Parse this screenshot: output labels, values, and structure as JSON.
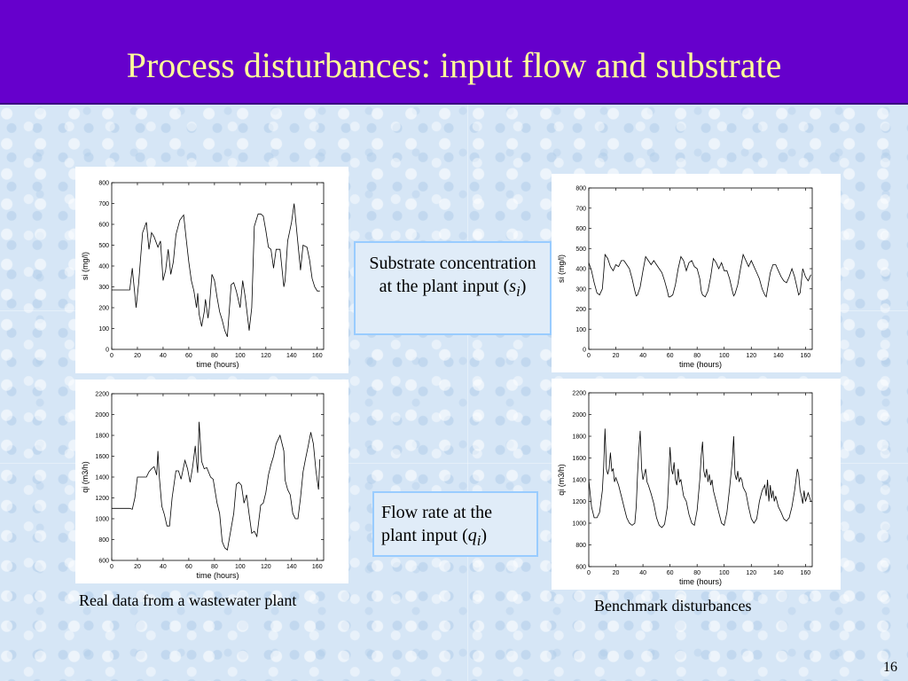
{
  "slide": {
    "title": "Process disturbances: input flow and substrate",
    "caption_left": "Real data from a wastewater plant",
    "caption_right": "Benchmark disturbances",
    "callout_top": {
      "text": "Substrate concentration at the plant input (",
      "symbol": "s",
      "subscript": "i",
      "close": ")"
    },
    "callout_bottom": {
      "text": "Flow rate at the plant input (",
      "symbol": "q",
      "subscript": "i",
      "close": ")"
    },
    "slide_number": "16",
    "colors": {
      "title_bar": "#6600cc",
      "title_text": "#ffff99",
      "background": "#d6e6f6",
      "callout_border": "#99ccff"
    }
  },
  "chart_data": [
    {
      "id": "real-si",
      "type": "line",
      "xlabel": "time (hours)",
      "ylabel": "si (mg/l)",
      "xlim": [
        0,
        165
      ],
      "ylim": [
        0,
        800
      ],
      "xticks": [
        0,
        20,
        40,
        60,
        80,
        100,
        120,
        140,
        160
      ],
      "yticks": [
        0,
        100,
        200,
        300,
        400,
        500,
        600,
        700,
        800
      ],
      "x": [
        0,
        4,
        8,
        12,
        14,
        16,
        19,
        21,
        24,
        27,
        29,
        31,
        33,
        36,
        38,
        40,
        42,
        44,
        46,
        48,
        50,
        53,
        56,
        58,
        60,
        62,
        64,
        66,
        67,
        68,
        70,
        72,
        73,
        75,
        76,
        78,
        80,
        82,
        84,
        86,
        88,
        90,
        93,
        95,
        97,
        100,
        102,
        104,
        107,
        109,
        111,
        114,
        116,
        118,
        120,
        122,
        124,
        126,
        128,
        131,
        134,
        135,
        137,
        140,
        142,
        144,
        147,
        149,
        152,
        154,
        156,
        158,
        160,
        162
      ],
      "y": [
        285,
        285,
        285,
        285,
        285,
        390,
        200,
        320,
        560,
        610,
        480,
        560,
        540,
        490,
        520,
        330,
        380,
        480,
        360,
        420,
        550,
        620,
        645,
        530,
        420,
        330,
        280,
        200,
        270,
        170,
        110,
        180,
        240,
        150,
        200,
        360,
        330,
        250,
        180,
        140,
        90,
        60,
        310,
        320,
        280,
        200,
        330,
        250,
        90,
        200,
        590,
        650,
        650,
        640,
        570,
        490,
        480,
        390,
        480,
        480,
        300,
        330,
        520,
        610,
        700,
        570,
        380,
        500,
        490,
        430,
        340,
        300,
        280,
        280
      ]
    },
    {
      "id": "real-qi",
      "type": "line",
      "xlabel": "time (hours)",
      "ylabel": "qi (m3/h)",
      "xlim": [
        0,
        165
      ],
      "ylim": [
        600,
        2200
      ],
      "xticks": [
        0,
        20,
        40,
        60,
        80,
        100,
        120,
        140,
        160
      ],
      "yticks": [
        600,
        800,
        1000,
        1200,
        1400,
        1600,
        1800,
        2000,
        2200
      ],
      "x": [
        0,
        4,
        8,
        12,
        14,
        16,
        18,
        20,
        24,
        27,
        29,
        31,
        33,
        35,
        36,
        37,
        39,
        41,
        43,
        45,
        47,
        50,
        52,
        54,
        56,
        57,
        59,
        61,
        63,
        65,
        66,
        67,
        68,
        70,
        72,
        74,
        77,
        79,
        80,
        82,
        84,
        86,
        88,
        90,
        93,
        95,
        97,
        99,
        101,
        103,
        105,
        107,
        109,
        111,
        113,
        116,
        118,
        120,
        122,
        124,
        126,
        128,
        131,
        134,
        135,
        137,
        139,
        141,
        143,
        145,
        147,
        149,
        151,
        153,
        155,
        157,
        159,
        161,
        162
      ],
      "y": [
        1100,
        1100,
        1100,
        1100,
        1100,
        1090,
        1200,
        1400,
        1400,
        1400,
        1450,
        1480,
        1500,
        1420,
        1650,
        1410,
        1120,
        1040,
        930,
        930,
        1200,
        1460,
        1460,
        1380,
        1500,
        1560,
        1480,
        1350,
        1500,
        1700,
        1550,
        1440,
        1930,
        1550,
        1480,
        1490,
        1400,
        1380,
        1300,
        1150,
        1050,
        780,
        720,
        700,
        910,
        1050,
        1330,
        1350,
        1320,
        1150,
        1230,
        1040,
        860,
        880,
        830,
        1130,
        1150,
        1250,
        1420,
        1520,
        1600,
        1720,
        1800,
        1650,
        1370,
        1280,
        1230,
        1050,
        1000,
        1000,
        1200,
        1450,
        1580,
        1700,
        1830,
        1720,
        1460,
        1280,
        1570
      ]
    },
    {
      "id": "bench-si",
      "type": "line",
      "xlabel": "time (hours)",
      "ylabel": "si (mg/l)",
      "xlim": [
        0,
        165
      ],
      "ylim": [
        0,
        800
      ],
      "xticks": [
        0,
        20,
        40,
        60,
        80,
        100,
        120,
        140,
        160
      ],
      "yticks": [
        0,
        100,
        200,
        300,
        400,
        500,
        600,
        700,
        800
      ],
      "x": [
        0,
        2,
        4,
        6,
        8,
        10,
        11,
        12,
        14,
        16,
        18,
        20,
        22,
        24,
        26,
        28,
        30,
        32,
        34,
        35,
        36,
        38,
        40,
        42,
        44,
        46,
        48,
        50,
        52,
        54,
        56,
        58,
        59,
        60,
        62,
        64,
        66,
        68,
        70,
        72,
        74,
        76,
        78,
        80,
        82,
        83,
        84,
        86,
        88,
        90,
        92,
        94,
        96,
        98,
        100,
        102,
        104,
        106,
        107,
        108,
        110,
        112,
        114,
        116,
        118,
        120,
        122,
        124,
        126,
        128,
        130,
        131,
        132,
        134,
        136,
        138,
        140,
        142,
        144,
        146,
        148,
        150,
        152,
        154,
        155,
        156,
        158,
        160,
        162,
        164
      ],
      "y": [
        430,
        390,
        330,
        280,
        270,
        300,
        380,
        470,
        450,
        410,
        390,
        420,
        410,
        440,
        440,
        420,
        400,
        350,
        290,
        265,
        270,
        310,
        390,
        460,
        440,
        420,
        440,
        420,
        400,
        380,
        340,
        290,
        260,
        260,
        270,
        320,
        400,
        460,
        440,
        390,
        430,
        440,
        410,
        400,
        350,
        290,
        270,
        260,
        290,
        360,
        450,
        430,
        400,
        430,
        390,
        390,
        350,
        290,
        265,
        275,
        320,
        400,
        470,
        440,
        410,
        440,
        410,
        380,
        350,
        300,
        270,
        260,
        300,
        380,
        420,
        420,
        390,
        360,
        340,
        330,
        360,
        400,
        360,
        300,
        270,
        280,
        400,
        360,
        340,
        370
      ]
    },
    {
      "id": "bench-qi",
      "type": "line",
      "xlabel": "time (hours)",
      "ylabel": "qi (m3/h)",
      "xlim": [
        0,
        165
      ],
      "ylim": [
        600,
        2200
      ],
      "xticks": [
        0,
        20,
        40,
        60,
        80,
        100,
        120,
        140,
        160
      ],
      "yticks": [
        600,
        800,
        1000,
        1200,
        1400,
        1600,
        1800,
        2000,
        2200
      ],
      "x": [
        0,
        2,
        4,
        6,
        8,
        10,
        11,
        12,
        13,
        14,
        15,
        16,
        17,
        18,
        19,
        20,
        22,
        24,
        26,
        28,
        30,
        32,
        34,
        35,
        36,
        37,
        38,
        39,
        40,
        41,
        42,
        43,
        44,
        46,
        48,
        50,
        52,
        54,
        56,
        58,
        59,
        60,
        61,
        62,
        63,
        64,
        65,
        66,
        67,
        68,
        70,
        72,
        74,
        76,
        78,
        80,
        82,
        83,
        84,
        85,
        86,
        87,
        88,
        89,
        90,
        91,
        92,
        94,
        96,
        98,
        100,
        102,
        104,
        106,
        107,
        108,
        109,
        110,
        111,
        112,
        113,
        114,
        116,
        118,
        120,
        122,
        124,
        126,
        128,
        130,
        131,
        132,
        133,
        134,
        135,
        136,
        137,
        138,
        140,
        142,
        144,
        146,
        148,
        150,
        152,
        154,
        155,
        156,
        157,
        158,
        159,
        160,
        162,
        164
      ],
      "y": [
        1400,
        1150,
        1050,
        1050,
        1100,
        1300,
        1520,
        1870,
        1500,
        1450,
        1500,
        1650,
        1480,
        1500,
        1380,
        1420,
        1350,
        1250,
        1150,
        1050,
        1000,
        980,
        1000,
        1150,
        1450,
        1680,
        1850,
        1500,
        1400,
        1450,
        1500,
        1380,
        1350,
        1270,
        1180,
        1050,
        980,
        960,
        990,
        1150,
        1400,
        1700,
        1500,
        1450,
        1560,
        1400,
        1350,
        1500,
        1380,
        1400,
        1250,
        1200,
        1080,
        1000,
        980,
        1120,
        1400,
        1620,
        1750,
        1480,
        1420,
        1500,
        1380,
        1450,
        1350,
        1400,
        1300,
        1200,
        1100,
        1000,
        980,
        1100,
        1320,
        1580,
        1800,
        1450,
        1400,
        1480,
        1380,
        1420,
        1400,
        1330,
        1280,
        1150,
        1040,
        1000,
        1040,
        1200,
        1300,
        1350,
        1250,
        1400,
        1200,
        1350,
        1230,
        1300,
        1200,
        1250,
        1150,
        1100,
        1040,
        1020,
        1050,
        1150,
        1300,
        1500,
        1450,
        1300,
        1250,
        1180,
        1300,
        1200,
        1280,
        1200
      ]
    }
  ]
}
